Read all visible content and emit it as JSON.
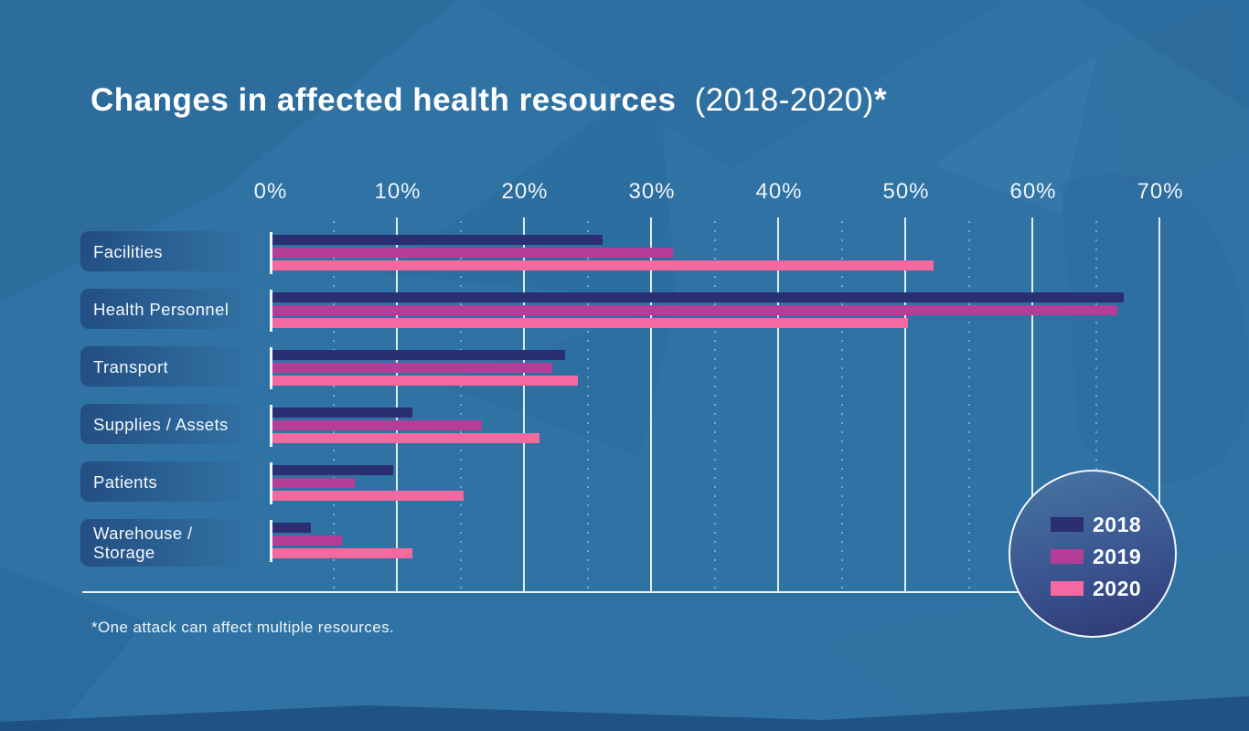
{
  "title": {
    "main": "Changes in affected health resources",
    "suffix": "(2018-2020)",
    "asterisk": "*"
  },
  "footnote": "*One attack can affect multiple resources.",
  "colors": {
    "background": "#2f72a4",
    "series_2018": "#2a2e72",
    "series_2019": "#b43e97",
    "series_2020": "#f4699f",
    "gridline": "#f0f7fc",
    "legend_circle_top": "#45719f",
    "legend_circle_bottom": "#303b76"
  },
  "chart_data": {
    "type": "bar",
    "orientation": "horizontal",
    "title": "Changes in affected health resources (2018-2020)*",
    "footnote": "*One attack can affect multiple resources.",
    "categories": [
      "Facilities",
      "Health Personnel",
      "Transport",
      "Supplies / Assets",
      "Patients",
      "Warehouse / Storage"
    ],
    "series": [
      {
        "name": "2018",
        "color": "#2a2e72",
        "values": [
          26,
          67,
          23,
          11,
          9.5,
          3
        ]
      },
      {
        "name": "2019",
        "color": "#b43e97",
        "values": [
          31.5,
          66.5,
          22,
          16.5,
          6.5,
          5.5
        ]
      },
      {
        "name": "2020",
        "color": "#f4699f",
        "values": [
          52,
          50,
          24,
          21,
          15,
          11
        ]
      }
    ],
    "xlabel": "",
    "ylabel": "",
    "xlim": [
      0,
      70
    ],
    "xticks": {
      "values": [
        0,
        10,
        20,
        30,
        40,
        50,
        60,
        70
      ],
      "labels": [
        "0%",
        "10%",
        "20%",
        "30%",
        "40%",
        "50%",
        "60%",
        "70%"
      ]
    },
    "grid": {
      "major": "solid white vertical every 10%",
      "minor": "dotted white vertical every 5%"
    },
    "legend": {
      "position": "bottom-right circle",
      "entries": [
        "2018",
        "2019",
        "2020"
      ]
    }
  }
}
